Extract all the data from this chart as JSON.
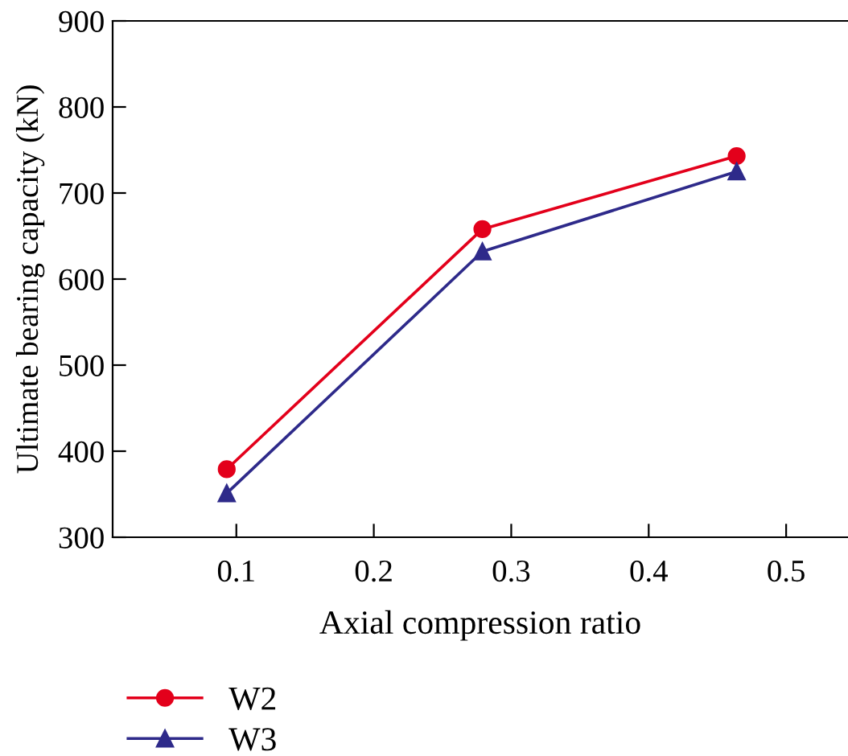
{
  "chart_data": {
    "type": "line",
    "xlabel": "Axial compression ratio",
    "ylabel": "Ultimate bearing capacity (kN)",
    "x": [
      0.093,
      0.279,
      0.464
    ],
    "series": [
      {
        "name": "W2",
        "color": "#e3001b",
        "values": [
          379,
          658,
          743
        ],
        "marker": "circle"
      },
      {
        "name": "W3",
        "color": "#2e2a8a",
        "values": [
          351,
          632,
          725
        ],
        "marker": "triangle"
      }
    ],
    "xlim": [
      0.01,
      0.545
    ],
    "xticks": [
      0.1,
      0.2,
      0.3,
      0.4,
      0.5
    ],
    "ylim": [
      300,
      900
    ],
    "yticks": [
      300,
      400,
      500,
      600,
      700,
      800,
      900
    ],
    "grid": false,
    "legend": "bottom left",
    "line_style": "solid"
  }
}
